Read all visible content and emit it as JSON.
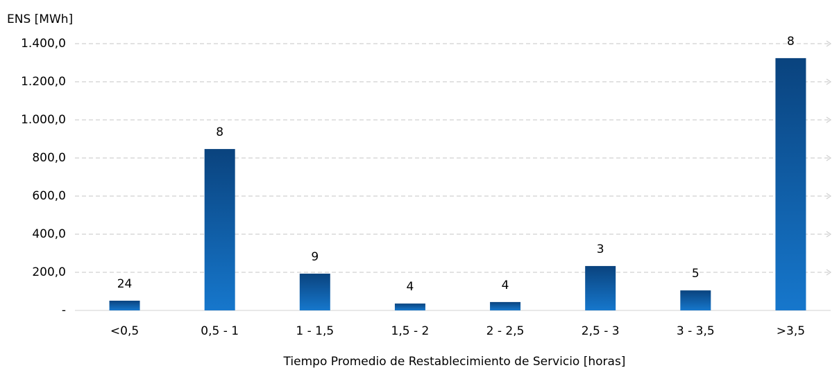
{
  "chart_data": {
    "type": "bar",
    "y_axis_title": "ENS [MWh]",
    "x_axis_title": "Tiempo Promedio de Restablecimiento de Servicio [horas]",
    "categories": [
      "<0,5",
      "0,5 - 1",
      "1 - 1,5",
      "1,5 - 2",
      "2 - 2,5",
      "2,5 - 3",
      "3 - 3,5",
      ">3,5"
    ],
    "values": [
      51,
      847,
      193,
      36,
      44,
      233,
      105,
      1324
    ],
    "data_labels": [
      24,
      8,
      9,
      4,
      4,
      3,
      5,
      8
    ],
    "gradient": [
      "#0a437e",
      "#1677cc"
    ],
    "ylim": [
      0,
      1400
    ],
    "yticks": [
      {
        "value": 0,
        "label": "-"
      },
      {
        "value": 200,
        "label": "200,0"
      },
      {
        "value": 400,
        "label": "400,0"
      },
      {
        "value": 600,
        "label": "600,0"
      },
      {
        "value": 800,
        "label": "800,0"
      },
      {
        "value": 1000,
        "label": "1.000,0"
      },
      {
        "value": 1200,
        "label": "1.200,0"
      },
      {
        "value": 1400,
        "label": "1.400,0"
      }
    ],
    "grid": true
  }
}
